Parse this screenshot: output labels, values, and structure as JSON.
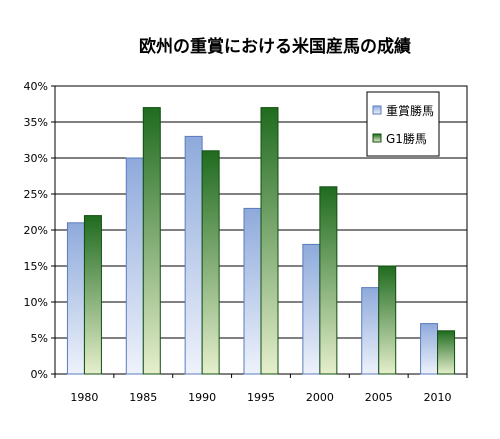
{
  "chart_data": {
    "type": "bar",
    "title": "欧州の重賞における米国産馬の成績",
    "categories": [
      "1980",
      "1985",
      "1990",
      "1995",
      "2000",
      "2005",
      "2010"
    ],
    "y_tick_labels": [
      "0%",
      "5%",
      "10%",
      "15%",
      "20%",
      "25%",
      "30%",
      "35%",
      "40%"
    ],
    "ylim": [
      0,
      40
    ],
    "grid": true,
    "legend_position": "top-right",
    "series": [
      {
        "name": "重賞勝馬",
        "values": [
          21,
          30,
          33,
          23,
          18,
          12,
          7
        ],
        "color": "#8eaadb"
      },
      {
        "name": "G1勝馬",
        "values": [
          22,
          37,
          31,
          37,
          26,
          15,
          6
        ],
        "color": "#1f6b1f"
      }
    ]
  }
}
